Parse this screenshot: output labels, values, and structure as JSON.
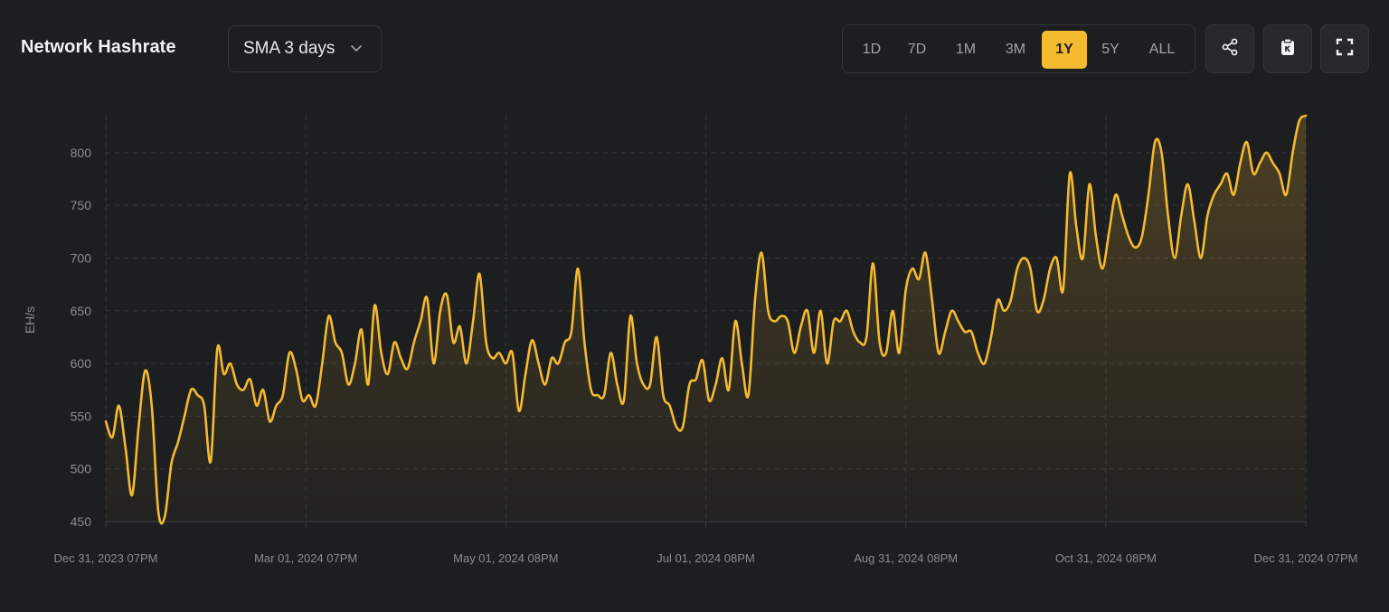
{
  "header": {
    "title": "Network Hashrate",
    "sma_select": {
      "value": "SMA 3 days",
      "icon": "chevron-down-icon"
    }
  },
  "ranges": [
    {
      "label": "1D",
      "active": false
    },
    {
      "label": "7D",
      "active": false
    },
    {
      "label": "1M",
      "active": false
    },
    {
      "label": "3M",
      "active": false
    },
    {
      "label": "1Y",
      "active": true
    },
    {
      "label": "5Y",
      "active": false
    },
    {
      "label": "ALL",
      "active": false
    }
  ],
  "actions": [
    {
      "name": "share-button",
      "icon": "share-icon"
    },
    {
      "name": "copy-clipboard-button",
      "icon": "clipboard-icon"
    },
    {
      "name": "fullscreen-button",
      "icon": "fullscreen-icon"
    }
  ],
  "colors": {
    "accent": "#f3ba2f",
    "background": "#1d1e20",
    "grid": "#34353a",
    "label": "#8b8c91"
  },
  "chart_data": {
    "type": "area",
    "ylabel": "EH/s",
    "ylim": [
      450,
      835
    ],
    "yticks": [
      450,
      500,
      550,
      600,
      650,
      700,
      750,
      800
    ],
    "x_range": [
      "2023-12-31",
      "2024-12-31"
    ],
    "x_ticks": [
      {
        "label": "Dec 31, 2023 07PM",
        "date": "2023-12-31"
      },
      {
        "label": "Mar 01, 2024 07PM",
        "date": "2024-03-01"
      },
      {
        "label": "May 01, 2024 08PM",
        "date": "2024-05-01"
      },
      {
        "label": "Jul 01, 2024 08PM",
        "date": "2024-07-01"
      },
      {
        "label": "Aug 31, 2024 08PM",
        "date": "2024-08-31"
      },
      {
        "label": "Oct 31, 2024 08PM",
        "date": "2024-10-31"
      },
      {
        "label": "Dec 31, 2024 07PM",
        "date": "2024-12-31"
      }
    ],
    "grid": true,
    "series": [
      {
        "color": "#f3ba2f",
        "x": [
          "2023-12-31",
          "2024-01-02",
          "2024-01-04",
          "2024-01-06",
          "2024-01-08",
          "2024-01-10",
          "2024-01-12",
          "2024-01-14",
          "2024-01-16",
          "2024-01-18",
          "2024-01-20",
          "2024-01-22",
          "2024-01-24",
          "2024-01-26",
          "2024-01-28",
          "2024-01-30",
          "2024-02-01",
          "2024-02-03",
          "2024-02-05",
          "2024-02-07",
          "2024-02-09",
          "2024-02-11",
          "2024-02-13",
          "2024-02-15",
          "2024-02-17",
          "2024-02-19",
          "2024-02-21",
          "2024-02-23",
          "2024-02-25",
          "2024-02-27",
          "2024-02-29",
          "2024-03-02",
          "2024-03-04",
          "2024-03-06",
          "2024-03-08",
          "2024-03-10",
          "2024-03-12",
          "2024-03-14",
          "2024-03-16",
          "2024-03-18",
          "2024-03-20",
          "2024-03-22",
          "2024-03-24",
          "2024-03-26",
          "2024-03-28",
          "2024-03-30",
          "2024-04-01",
          "2024-04-03",
          "2024-04-05",
          "2024-04-07",
          "2024-04-09",
          "2024-04-11",
          "2024-04-13",
          "2024-04-15",
          "2024-04-17",
          "2024-04-19",
          "2024-04-21",
          "2024-04-23",
          "2024-04-25",
          "2024-04-27",
          "2024-04-29",
          "2024-05-01",
          "2024-05-03",
          "2024-05-05",
          "2024-05-07",
          "2024-05-09",
          "2024-05-11",
          "2024-05-13",
          "2024-05-15",
          "2024-05-17",
          "2024-05-19",
          "2024-05-21",
          "2024-05-23",
          "2024-05-25",
          "2024-05-27",
          "2024-05-29",
          "2024-05-31",
          "2024-06-02",
          "2024-06-04",
          "2024-06-06",
          "2024-06-08",
          "2024-06-10",
          "2024-06-12",
          "2024-06-14",
          "2024-06-16",
          "2024-06-18",
          "2024-06-20",
          "2024-06-22",
          "2024-06-24",
          "2024-06-26",
          "2024-06-28",
          "2024-06-30",
          "2024-07-02",
          "2024-07-04",
          "2024-07-06",
          "2024-07-08",
          "2024-07-10",
          "2024-07-12",
          "2024-07-14",
          "2024-07-16",
          "2024-07-18",
          "2024-07-20",
          "2024-07-22",
          "2024-07-24",
          "2024-07-26",
          "2024-07-28",
          "2024-07-30",
          "2024-08-01",
          "2024-08-03",
          "2024-08-05",
          "2024-08-07",
          "2024-08-09",
          "2024-08-11",
          "2024-08-13",
          "2024-08-15",
          "2024-08-17",
          "2024-08-19",
          "2024-08-21",
          "2024-08-23",
          "2024-08-25",
          "2024-08-27",
          "2024-08-29",
          "2024-08-31",
          "2024-09-02",
          "2024-09-04",
          "2024-09-06",
          "2024-09-08",
          "2024-09-10",
          "2024-09-12",
          "2024-09-14",
          "2024-09-16",
          "2024-09-18",
          "2024-09-20",
          "2024-09-22",
          "2024-09-24",
          "2024-09-26",
          "2024-09-28",
          "2024-09-30",
          "2024-10-02",
          "2024-10-04",
          "2024-10-06",
          "2024-10-08",
          "2024-10-10",
          "2024-10-12",
          "2024-10-14",
          "2024-10-16",
          "2024-10-18",
          "2024-10-20",
          "2024-10-22",
          "2024-10-24",
          "2024-10-26",
          "2024-10-28",
          "2024-10-30",
          "2024-11-01",
          "2024-11-03",
          "2024-11-05",
          "2024-11-07",
          "2024-11-09",
          "2024-11-11",
          "2024-11-13",
          "2024-11-15",
          "2024-11-17",
          "2024-11-19",
          "2024-11-21",
          "2024-11-23",
          "2024-11-25",
          "2024-11-27",
          "2024-11-29",
          "2024-12-01",
          "2024-12-03",
          "2024-12-05",
          "2024-12-07",
          "2024-12-09",
          "2024-12-11",
          "2024-12-13",
          "2024-12-15",
          "2024-12-17",
          "2024-12-19",
          "2024-12-21",
          "2024-12-23",
          "2024-12-25",
          "2024-12-27",
          "2024-12-29",
          "2024-12-31"
        ],
        "y": [
          545,
          530,
          560,
          520,
          475,
          540,
          593,
          560,
          460,
          455,
          505,
          525,
          550,
          575,
          570,
          560,
          507,
          614,
          590,
          600,
          580,
          575,
          585,
          560,
          575,
          545,
          560,
          570,
          610,
          595,
          565,
          570,
          560,
          600,
          645,
          620,
          610,
          580,
          600,
          632,
          580,
          655,
          610,
          590,
          620,
          605,
          595,
          620,
          640,
          662,
          600,
          650,
          665,
          620,
          635,
          600,
          640,
          685,
          620,
          605,
          610,
          600,
          610,
          555,
          590,
          622,
          600,
          580,
          605,
          600,
          620,
          630,
          690,
          620,
          575,
          570,
          570,
          610,
          580,
          565,
          645,
          600,
          580,
          580,
          625,
          570,
          560,
          540,
          540,
          580,
          585,
          603,
          565,
          580,
          605,
          575,
          640,
          600,
          570,
          660,
          705,
          650,
          640,
          645,
          640,
          610,
          635,
          650,
          610,
          650,
          600,
          640,
          640,
          650,
          630,
          620,
          625,
          695,
          620,
          610,
          650,
          610,
          670,
          690,
          680,
          705,
          660,
          610,
          630,
          650,
          640,
          630,
          630,
          610,
          600,
          625,
          660,
          650,
          660,
          690,
          700,
          690,
          650,
          660,
          690,
          700,
          670,
          780,
          730,
          700,
          770,
          720,
          690,
          725,
          760,
          740,
          720,
          710,
          720,
          760,
          810,
          800,
          740,
          700,
          740,
          770,
          735,
          700,
          740,
          760,
          770,
          780,
          760,
          790,
          810,
          780,
          790,
          800,
          790,
          780,
          760,
          800,
          830,
          835
        ]
      }
    ]
  }
}
